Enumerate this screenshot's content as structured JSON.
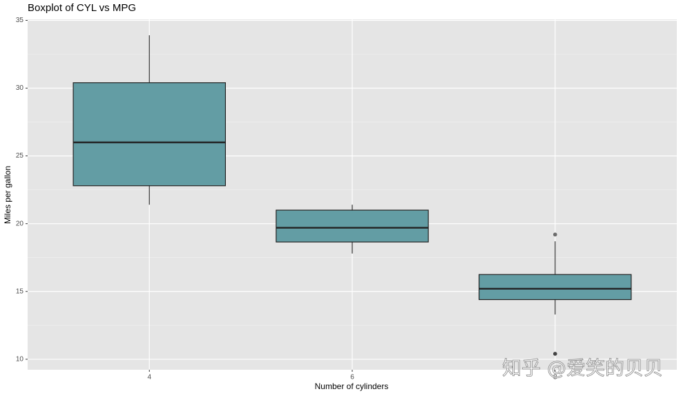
{
  "chart_data": {
    "type": "boxplot",
    "title": "Boxplot of CYL vs MPG",
    "x_label": "Number of cylinders",
    "y_label": "Miles per gallon",
    "categories": [
      "4",
      "6",
      "8"
    ],
    "boxes": [
      {
        "min": 21.4,
        "q1": 22.8,
        "median": 26.0,
        "q3": 30.4,
        "max": 33.9,
        "outliers": []
      },
      {
        "min": 17.8,
        "q1": 18.65,
        "median": 19.7,
        "q3": 21.0,
        "max": 21.4,
        "outliers": []
      },
      {
        "min": 13.3,
        "q1": 14.4,
        "median": 15.2,
        "q3": 16.25,
        "max": 18.7,
        "outliers": [
          10.4,
          10.4,
          19.2
        ]
      }
    ],
    "color": "#639da4",
    "ylim": [
      9.225,
      35.075
    ],
    "yticks": [
      10,
      15,
      20,
      25,
      30,
      35
    ],
    "grid": true
  },
  "watermark": "知乎 @爱笑的贝贝"
}
